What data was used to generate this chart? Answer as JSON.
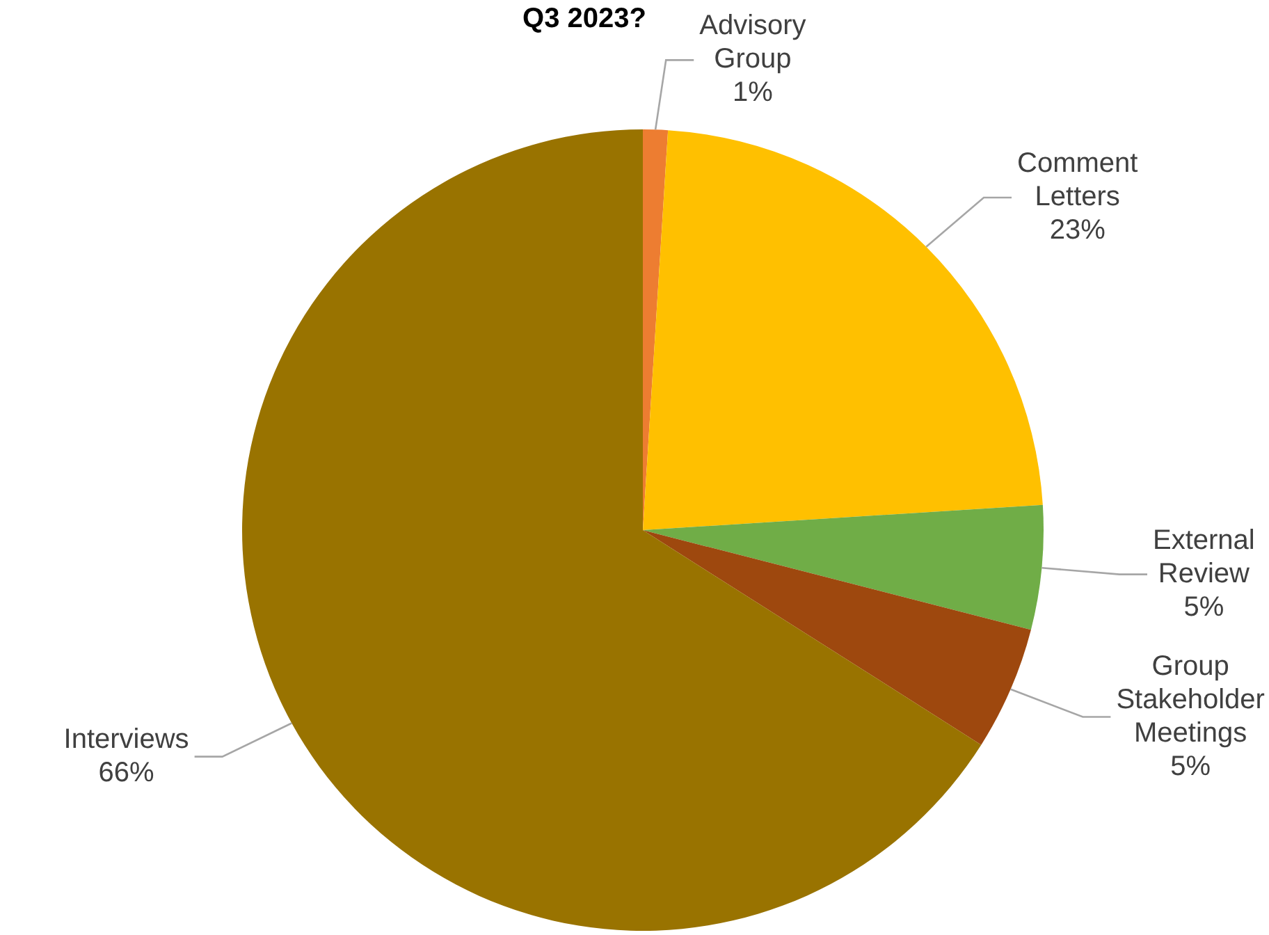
{
  "chart_data": {
    "type": "pie",
    "title": "Q3 2023?",
    "categories": [
      "Advisory Group",
      "Comment Letters",
      "External Review",
      "Group Stakeholder Meetings",
      "Interviews"
    ],
    "values": [
      1,
      23,
      5,
      5,
      66
    ],
    "colors": [
      "#ed7d31",
      "#ffc000",
      "#70ad47",
      "#9e480e",
      "#997300"
    ],
    "value_labels": [
      "1%",
      "23%",
      "5%",
      "5%",
      "66%"
    ],
    "legend": false
  }
}
